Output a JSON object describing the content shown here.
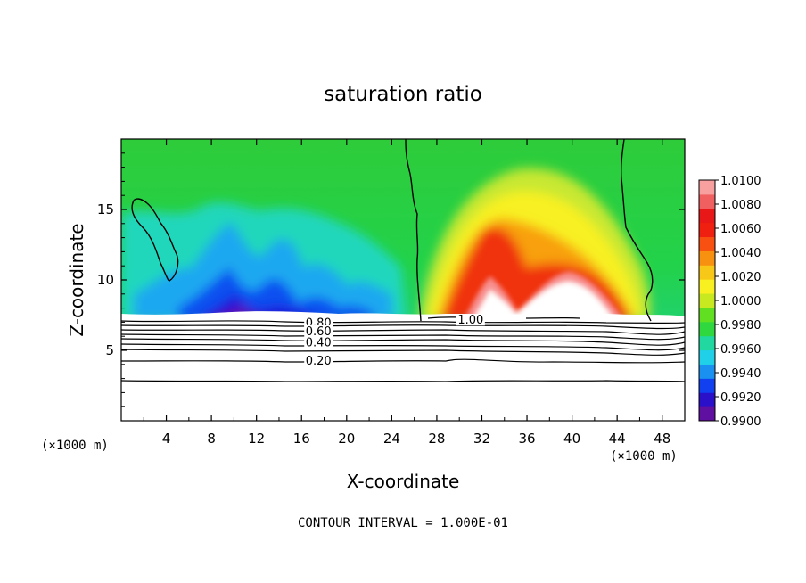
{
  "chart_data": {
    "type": "heatmap",
    "title": "saturation ratio",
    "xlabel": "X-coordinate",
    "ylabel": "Z-coordinate",
    "x_unit": "(×1000 m)",
    "footer": "CONTOUR INTERVAL = 1.000E-01",
    "xlim": [
      0,
      50
    ],
    "ylim": [
      0,
      20
    ],
    "x_ticks": [
      4,
      8,
      12,
      16,
      20,
      24,
      28,
      32,
      36,
      40,
      44,
      48
    ],
    "y_ticks": [
      5,
      10,
      15
    ],
    "colorbar": {
      "min": 0.99,
      "max": 1.01,
      "tick_values": [
        0.99,
        0.992,
        0.994,
        0.996,
        0.998,
        1.0,
        1.002,
        1.004,
        1.006,
        1.008,
        1.01
      ],
      "tick_labels": [
        "0.9900",
        "0.9920",
        "0.9940",
        "0.9960",
        "0.9980",
        "1.0000",
        "1.0020",
        "1.0040",
        "1.0060",
        "1.0080",
        "1.0100"
      ]
    },
    "contour_labels": [
      {
        "text": "0.80",
        "x": 17.5,
        "z": 7.0
      },
      {
        "text": "0.60",
        "x": 17.5,
        "z": 6.4
      },
      {
        "text": "0.40",
        "x": 17.5,
        "z": 5.6
      },
      {
        "text": "0.20",
        "x": 17.5,
        "z": 4.3
      },
      {
        "text": "1.00",
        "x": 31.0,
        "z": 7.2
      }
    ],
    "contour_levels_below": [
      {
        "level": 0.9,
        "z": 7.0
      },
      {
        "level": 0.8,
        "z": 6.75
      },
      {
        "level": 0.7,
        "z": 6.5
      },
      {
        "level": 0.6,
        "z": 6.25
      },
      {
        "level": 0.5,
        "z": 6.0
      },
      {
        "level": 0.4,
        "z": 5.6
      },
      {
        "level": 0.3,
        "z": 5.1
      },
      {
        "level": 0.2,
        "z": 4.3
      },
      {
        "level": 0.1,
        "z": 2.9
      }
    ],
    "cloud_base_z": 7.2
  }
}
